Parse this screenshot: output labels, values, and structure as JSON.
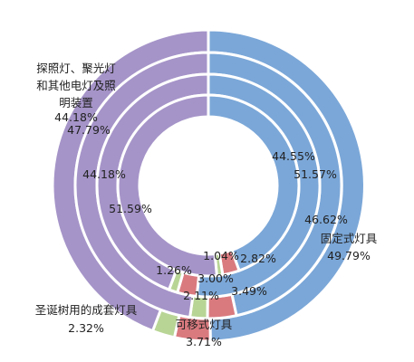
{
  "chart_data": {
    "type": "pie",
    "variant": "multi-level donut",
    "categories": [
      "固定式灯具",
      "可移式灯具",
      "圣诞树用的成套灯具",
      "探照灯、聚光灯和其他电灯及照明装置"
    ],
    "category_labels": [
      [
        "固定式灯具"
      ],
      [
        "可移式灯具"
      ],
      [
        "圣诞树用的成套灯具"
      ],
      [
        "探照灯、聚光灯",
        "和其他电灯及照",
        "明装置"
      ]
    ],
    "colors": [
      "#7ba7d8",
      "#d97a7f",
      "#b9d596",
      "#a594c8"
    ],
    "series": [
      {
        "values": [
          49.79,
          3.71,
          2.32,
          44.18
        ]
      },
      {
        "values": [
          46.62,
          3.49,
          2.11,
          47.79
        ]
      },
      {
        "values": [
          51.57,
          2.82,
          1.26,
          44.18
        ]
      },
      {
        "values": [
          44.55,
          3.0,
          1.04,
          51.59
        ]
      }
    ],
    "value_labels": [
      [
        "49.79%",
        "3.71%",
        "2.32%",
        "44.18%"
      ],
      [
        "46.62%",
        "3.49%",
        "2.11%",
        "47.79%"
      ],
      [
        "51.57%",
        "2.82%",
        "1.26%",
        "44.18%"
      ],
      [
        "44.55%",
        "3.00%",
        "1.04%",
        "51.59%"
      ]
    ]
  }
}
